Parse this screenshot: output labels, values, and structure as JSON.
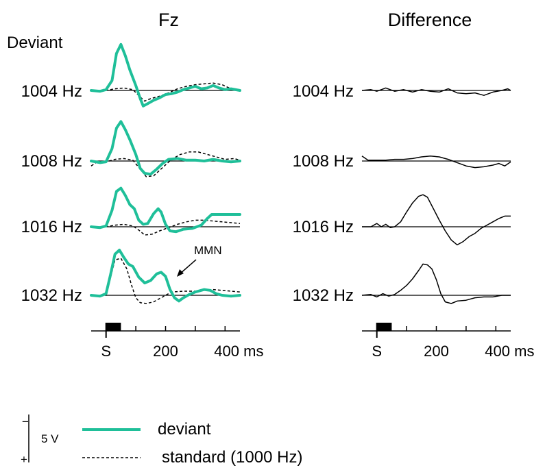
{
  "chart_data": {
    "type": "line",
    "panels": [
      {
        "title": "Fz"
      },
      {
        "title": "Difference"
      }
    ],
    "row_header": "Deviant",
    "rows": [
      "1004 Hz",
      "1008 Hz",
      "1016 Hz",
      "1032 Hz"
    ],
    "x_axis": {
      "unit": "ms",
      "range": [
        -50,
        450
      ],
      "stimulus_label": "S",
      "stimulus_duration": [
        0,
        50
      ],
      "ticks": [
        0,
        100,
        200,
        300,
        400
      ],
      "tick_labels": [
        "S",
        "200",
        "400 ms"
      ]
    },
    "y_scale": {
      "minus_label": "−",
      "plus_label": "+",
      "value_label": "5 V",
      "negative_up": true
    },
    "annotation": {
      "label": "MMN",
      "row": "1032 Hz",
      "x": 230
    },
    "legend": [
      {
        "key": "deviant",
        "label": "deviant",
        "color": "#1fbf99",
        "style": "solid"
      },
      {
        "key": "standard",
        "label": "standard (1000 Hz)",
        "color": "#000000",
        "style": "dashed"
      }
    ],
    "series": {
      "fz": [
        {
          "row": "1004 Hz",
          "deviant": [
            [
              -50,
              0
            ],
            [
              -20,
              0.1
            ],
            [
              0,
              -0.1
            ],
            [
              20,
              -1.2
            ],
            [
              35,
              -4.5
            ],
            [
              50,
              -5.6
            ],
            [
              65,
              -4.2
            ],
            [
              80,
              -2.5
            ],
            [
              100,
              -0.6
            ],
            [
              115,
              1.0
            ],
            [
              125,
              1.9
            ],
            [
              140,
              1.6
            ],
            [
              160,
              1.2
            ],
            [
              180,
              0.9
            ],
            [
              200,
              0.5
            ],
            [
              220,
              0.4
            ],
            [
              240,
              0.2
            ],
            [
              260,
              -0.1
            ],
            [
              280,
              -0.3
            ],
            [
              300,
              -0.5
            ],
            [
              320,
              -0.2
            ],
            [
              340,
              -0.3
            ],
            [
              360,
              -0.6
            ],
            [
              380,
              -0.3
            ],
            [
              400,
              -0.1
            ],
            [
              420,
              -0.2
            ],
            [
              450,
              0
            ]
          ],
          "standard": [
            [
              -50,
              0
            ],
            [
              0,
              0
            ],
            [
              30,
              -0.2
            ],
            [
              60,
              -0.3
            ],
            [
              90,
              -0.1
            ],
            [
              115,
              0.8
            ],
            [
              130,
              1.3
            ],
            [
              150,
              1.0
            ],
            [
              180,
              0.7
            ],
            [
              210,
              0.3
            ],
            [
              240,
              -0.2
            ],
            [
              270,
              -0.5
            ],
            [
              300,
              -0.7
            ],
            [
              330,
              -0.8
            ],
            [
              360,
              -0.9
            ],
            [
              390,
              -0.7
            ],
            [
              420,
              -0.2
            ],
            [
              450,
              0
            ]
          ]
        },
        {
          "row": "1008 Hz",
          "deviant": [
            [
              -50,
              0
            ],
            [
              -20,
              0.2
            ],
            [
              0,
              0.1
            ],
            [
              20,
              -1.5
            ],
            [
              35,
              -4.0
            ],
            [
              50,
              -4.8
            ],
            [
              65,
              -3.8
            ],
            [
              80,
              -2.6
            ],
            [
              100,
              -0.8
            ],
            [
              115,
              0.9
            ],
            [
              130,
              1.5
            ],
            [
              150,
              1.6
            ],
            [
              170,
              1.0
            ],
            [
              190,
              0.3
            ],
            [
              210,
              -0.2
            ],
            [
              240,
              -0.3
            ],
            [
              270,
              -0.1
            ],
            [
              300,
              -0.1
            ],
            [
              330,
              0
            ],
            [
              360,
              -0.2
            ],
            [
              390,
              0
            ],
            [
              420,
              0.1
            ],
            [
              450,
              0
            ]
          ],
          "standard": [
            [
              -50,
              0.6
            ],
            [
              -30,
              0.1
            ],
            [
              0,
              0.1
            ],
            [
              30,
              -0.2
            ],
            [
              60,
              -0.3
            ],
            [
              90,
              -0.1
            ],
            [
              115,
              1.0
            ],
            [
              135,
              1.9
            ],
            [
              160,
              1.8
            ],
            [
              190,
              0.8
            ],
            [
              220,
              -0.2
            ],
            [
              250,
              -0.8
            ],
            [
              280,
              -1.1
            ],
            [
              310,
              -1.1
            ],
            [
              340,
              -0.8
            ],
            [
              370,
              -0.5
            ],
            [
              400,
              -0.2
            ],
            [
              430,
              -0.3
            ],
            [
              450,
              -0.1
            ]
          ]
        },
        {
          "row": "1016 Hz",
          "deviant": [
            [
              -50,
              0
            ],
            [
              -20,
              0.1
            ],
            [
              0,
              -0.1
            ],
            [
              20,
              -2.0
            ],
            [
              35,
              -4.3
            ],
            [
              50,
              -4.7
            ],
            [
              65,
              -3.8
            ],
            [
              80,
              -2.7
            ],
            [
              95,
              -2.2
            ],
            [
              110,
              -0.8
            ],
            [
              125,
              -0.3
            ],
            [
              140,
              -0.4
            ],
            [
              160,
              -1.6
            ],
            [
              175,
              -2.2
            ],
            [
              185,
              -1.8
            ],
            [
              200,
              -0.3
            ],
            [
              215,
              0.5
            ],
            [
              235,
              0.6
            ],
            [
              260,
              0.3
            ],
            [
              290,
              0.2
            ],
            [
              320,
              -0.2
            ],
            [
              340,
              -1.0
            ],
            [
              355,
              -1.5
            ],
            [
              380,
              -1.5
            ],
            [
              410,
              -1.5
            ],
            [
              450,
              -1.5
            ]
          ],
          "standard": [
            [
              -50,
              0
            ],
            [
              0,
              0
            ],
            [
              30,
              -0.2
            ],
            [
              60,
              -0.3
            ],
            [
              90,
              -0.1
            ],
            [
              110,
              0.4
            ],
            [
              130,
              1.0
            ],
            [
              155,
              0.9
            ],
            [
              180,
              0.5
            ],
            [
              210,
              0.1
            ],
            [
              240,
              -0.3
            ],
            [
              270,
              -0.6
            ],
            [
              300,
              -0.8
            ],
            [
              330,
              -0.8
            ],
            [
              360,
              -0.7
            ],
            [
              390,
              -0.6
            ],
            [
              420,
              -0.5
            ],
            [
              450,
              -0.4
            ]
          ]
        },
        {
          "row": "1032 Hz",
          "deviant": [
            [
              -50,
              0
            ],
            [
              -20,
              0.1
            ],
            [
              0,
              -0.2
            ],
            [
              15,
              -2.5
            ],
            [
              30,
              -5.0
            ],
            [
              45,
              -5.5
            ],
            [
              60,
              -4.6
            ],
            [
              75,
              -3.8
            ],
            [
              90,
              -3.5
            ],
            [
              110,
              -2.2
            ],
            [
              130,
              -1.5
            ],
            [
              150,
              -1.8
            ],
            [
              170,
              -2.6
            ],
            [
              185,
              -2.8
            ],
            [
              200,
              -2.3
            ],
            [
              215,
              -0.7
            ],
            [
              230,
              0.3
            ],
            [
              245,
              0.7
            ],
            [
              260,
              0.3
            ],
            [
              280,
              -0.1
            ],
            [
              300,
              -0.4
            ],
            [
              330,
              -0.7
            ],
            [
              350,
              -0.6
            ],
            [
              370,
              -0.2
            ],
            [
              390,
              0
            ],
            [
              420,
              0.1
            ],
            [
              450,
              0
            ]
          ],
          "standard": [
            [
              -50,
              0
            ],
            [
              0,
              0
            ],
            [
              30,
              -4.3
            ],
            [
              50,
              -4.5
            ],
            [
              70,
              -3.2
            ],
            [
              85,
              -1.3
            ],
            [
              100,
              0.3
            ],
            [
              115,
              0.9
            ],
            [
              135,
              1.0
            ],
            [
              160,
              0.8
            ],
            [
              190,
              0.2
            ],
            [
              220,
              -0.4
            ],
            [
              260,
              -0.5
            ],
            [
              300,
              -0.5
            ],
            [
              330,
              -0.6
            ],
            [
              360,
              -0.7
            ],
            [
              390,
              -0.6
            ],
            [
              420,
              -0.5
            ],
            [
              450,
              -0.4
            ]
          ]
        }
      ],
      "difference": [
        {
          "row": "1004 Hz",
          "values": [
            [
              -50,
              0
            ],
            [
              -20,
              -0.1
            ],
            [
              0,
              0.1
            ],
            [
              30,
              -0.3
            ],
            [
              60,
              0.1
            ],
            [
              90,
              -0.1
            ],
            [
              120,
              0.2
            ],
            [
              150,
              -0.1
            ],
            [
              180,
              0.1
            ],
            [
              210,
              0.2
            ],
            [
              240,
              -0.2
            ],
            [
              270,
              0.3
            ],
            [
              300,
              0.4
            ],
            [
              330,
              0.3
            ],
            [
              360,
              0.6
            ],
            [
              390,
              0.2
            ],
            [
              420,
              0
            ],
            [
              440,
              -0.2
            ],
            [
              450,
              0
            ]
          ]
        },
        {
          "row": "1008 Hz",
          "values": [
            [
              -50,
              -0.6
            ],
            [
              -30,
              -0.1
            ],
            [
              0,
              -0.1
            ],
            [
              30,
              -0.1
            ],
            [
              60,
              -0.2
            ],
            [
              90,
              -0.2
            ],
            [
              120,
              -0.3
            ],
            [
              150,
              -0.5
            ],
            [
              180,
              -0.6
            ],
            [
              210,
              -0.5
            ],
            [
              240,
              -0.2
            ],
            [
              270,
              0.2
            ],
            [
              300,
              0.6
            ],
            [
              330,
              0.8
            ],
            [
              360,
              0.7
            ],
            [
              390,
              0.5
            ],
            [
              410,
              0.3
            ],
            [
              430,
              0.6
            ],
            [
              450,
              0.1
            ]
          ]
        },
        {
          "row": "1016 Hz",
          "values": [
            [
              -50,
              0
            ],
            [
              -20,
              0
            ],
            [
              0,
              -0.4
            ],
            [
              15,
              0
            ],
            [
              30,
              -0.3
            ],
            [
              45,
              0.1
            ],
            [
              60,
              0
            ],
            [
              80,
              -0.6
            ],
            [
              100,
              -1.8
            ],
            [
              120,
              -2.9
            ],
            [
              140,
              -3.7
            ],
            [
              155,
              -3.9
            ],
            [
              170,
              -3.6
            ],
            [
              190,
              -2.2
            ],
            [
              210,
              -0.8
            ],
            [
              230,
              0.5
            ],
            [
              250,
              1.6
            ],
            [
              270,
              2.2
            ],
            [
              290,
              1.8
            ],
            [
              310,
              1.2
            ],
            [
              330,
              0.8
            ],
            [
              350,
              0.2
            ],
            [
              370,
              -0.2
            ],
            [
              390,
              -0.6
            ],
            [
              410,
              -1.0
            ],
            [
              430,
              -1.3
            ],
            [
              450,
              -1.3
            ]
          ]
        },
        {
          "row": "1032 Hz",
          "values": [
            [
              -50,
              0
            ],
            [
              -20,
              -0.1
            ],
            [
              0,
              0.2
            ],
            [
              20,
              -0.2
            ],
            [
              40,
              0.1
            ],
            [
              60,
              -0.1
            ],
            [
              80,
              -0.6
            ],
            [
              100,
              -1.2
            ],
            [
              120,
              -2.0
            ],
            [
              140,
              -3.0
            ],
            [
              155,
              -3.8
            ],
            [
              170,
              -3.7
            ],
            [
              185,
              -3.2
            ],
            [
              200,
              -1.9
            ],
            [
              215,
              -0.2
            ],
            [
              230,
              0.8
            ],
            [
              250,
              1.0
            ],
            [
              270,
              0.7
            ],
            [
              300,
              0.6
            ],
            [
              330,
              0.3
            ],
            [
              360,
              0.2
            ],
            [
              390,
              0.2
            ],
            [
              420,
              0
            ],
            [
              450,
              0
            ]
          ]
        }
      ]
    }
  }
}
